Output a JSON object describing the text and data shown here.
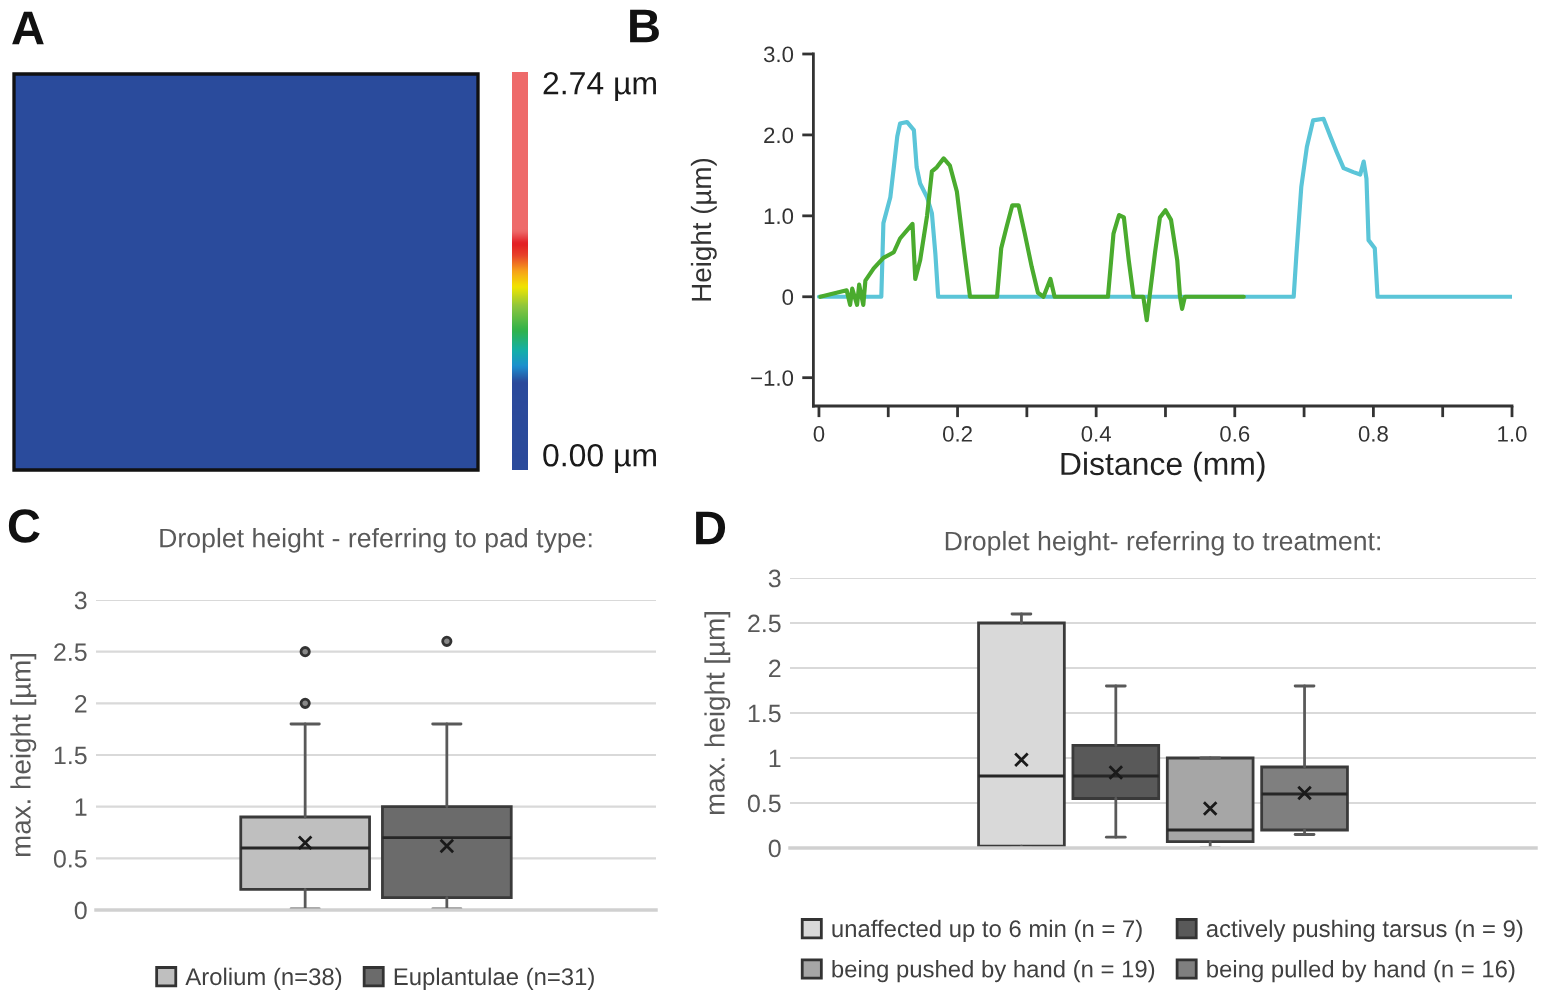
{
  "chart_data": [
    {
      "type": "other",
      "annotations": [
        "A",
        "2.74 µm",
        "0.00 µm"
      ]
    },
    {
      "type": "line",
      "xlabel": "Distance (mm)",
      "ylabel": "Height (µm)",
      "annotations": [
        "B"
      ],
      "series": [
        {
          "color": "#5bc5d8",
          "x": [
            0,
            0.09,
            0.093,
            0.103,
            0.108,
            0.113,
            0.117,
            0.127,
            0.137,
            0.141,
            0.146,
            0.156,
            0.163,
            0.168,
            0.172,
            0.685,
            0.689,
            0.696,
            0.704,
            0.713,
            0.728,
            0.738,
            0.747,
            0.757,
            0.771,
            0.781,
            0.786,
            0.79,
            0.793,
            0.802,
            0.806,
            1.0
          ],
          "values": [
            0,
            0,
            0.91,
            1.23,
            1.6,
            1.98,
            2.14,
            2.16,
            2.06,
            1.6,
            1.4,
            1.23,
            1.03,
            0.53,
            0,
            0,
            0.53,
            1.36,
            1.85,
            2.18,
            2.2,
            1.98,
            1.79,
            1.59,
            1.54,
            1.51,
            1.67,
            1.46,
            0.7,
            0.6,
            0,
            0
          ]
        },
        {
          "color": "#4aab2e",
          "x": [
            0.002,
            0.021,
            0.04,
            0.045,
            0.048,
            0.055,
            0.058,
            0.064,
            0.067,
            0.079,
            0.093,
            0.108,
            0.117,
            0.127,
            0.135,
            0.139,
            0.146,
            0.156,
            0.163,
            0.17,
            0.18,
            0.189,
            0.199,
            0.209,
            0.218,
            0.257,
            0.263,
            0.271,
            0.279,
            0.288,
            0.297,
            0.307,
            0.316,
            0.324,
            0.334,
            0.34,
            0.417,
            0.425,
            0.433,
            0.44,
            0.447,
            0.454,
            0.468,
            0.473,
            0.477,
            0.485,
            0.492,
            0.5,
            0.508,
            0.517,
            0.521,
            0.524,
            0.528,
            0.613
          ],
          "values": [
            0,
            0.04,
            0.08,
            -0.1,
            0.1,
            -0.1,
            0.15,
            -0.1,
            0.2,
            0.35,
            0.48,
            0.55,
            0.72,
            0.82,
            0.9,
            0.22,
            0.45,
            1.0,
            1.55,
            1.6,
            1.71,
            1.62,
            1.3,
            0.6,
            0,
            0,
            0.6,
            0.87,
            1.13,
            1.13,
            0.78,
            0.37,
            0.05,
            0,
            0.22,
            0,
            0,
            0.78,
            1.01,
            0.98,
            0.45,
            0,
            0,
            -0.29,
            0,
            0.55,
            0.98,
            1.07,
            0.95,
            0.45,
            0,
            -0.15,
            0,
            0
          ]
        }
      ],
      "xlim": [
        -0.008,
        1.0
      ],
      "ylim": [
        -1.35,
        3.0
      ],
      "xticks": [
        0,
        {
          "value": 0.1,
          "label": null
        },
        0.2,
        {
          "value": 0.3,
          "label": null
        },
        0.4,
        {
          "value": 0.5,
          "label": null
        },
        0.6,
        {
          "value": 0.7,
          "label": null
        },
        0.8,
        {
          "value": 0.9,
          "label": null
        },
        {
          "value": 1,
          "label": "1.0"
        }
      ],
      "yticks": [
        {
          "value": 3,
          "label": "3.0"
        },
        {
          "value": 2,
          "label": "2.0"
        },
        {
          "value": 1,
          "label": "1.0"
        },
        0,
        {
          "value": -1,
          "label": "−1.0"
        }
      ]
    },
    {
      "type": "box",
      "title": "Droplet height - referring to pad type:",
      "ylabel": "max. height [µm]",
      "annotations": [
        "C"
      ],
      "categories": [
        null
      ],
      "series": [
        {
          "name": "Arolium (n=38)",
          "color": "#bfbfbf",
          "boxes": [
            {
              "low": 0.01,
              "q1": 0.2,
              "median": 0.6,
              "q3": 0.9,
              "high": 1.8,
              "mean": 0.65,
              "outliers": [
                2.0,
                2.5
              ]
            }
          ]
        },
        {
          "name": "Euplantulae (n=31)",
          "color": "#6b6b6b",
          "boxes": [
            {
              "low": 0.01,
              "q1": 0.12,
              "median": 0.7,
              "q3": 1.0,
              "high": 1.8,
              "mean": 0.62,
              "outliers": [
                2.6
              ]
            }
          ]
        }
      ],
      "ylim": [
        0,
        3
      ],
      "yticks": [
        0,
        0.5,
        1,
        1.5,
        2,
        2.5,
        3
      ],
      "grid": "y",
      "legend": "bottom"
    },
    {
      "type": "box",
      "title": "Droplet height- referring to treatment:",
      "ylabel": "max. height [µm]",
      "annotations": [
        "D"
      ],
      "categories": [
        null
      ],
      "series": [
        {
          "name": "unaffected up to 6 min (n = 7)",
          "color": "#d9d9d9",
          "boxes": [
            {
              "low": 0,
              "q1": 0.02,
              "median": 0.8,
              "q3": 2.5,
              "high": 2.6,
              "mean": 0.98
            }
          ]
        },
        {
          "name": "actively pushing tarsus (n = 9)",
          "color": "#595959",
          "boxes": [
            {
              "low": 0.12,
              "q1": 0.55,
              "median": 0.8,
              "q3": 1.14,
              "high": 1.8,
              "mean": 0.84
            }
          ]
        },
        {
          "name": "being pushed by hand (n = 19)",
          "color": "#a6a6a6",
          "boxes": [
            {
              "low": 0,
              "q1": 0.07,
              "median": 0.2,
              "q3": 1.0,
              "high": 1.0,
              "mean": 0.44
            }
          ]
        },
        {
          "name": "being pulled by hand (n = 16)",
          "color": "#7f7f7f",
          "boxes": [
            {
              "low": 0.15,
              "q1": 0.2,
              "median": 0.6,
              "q3": 0.9,
              "high": 1.8,
              "mean": 0.61
            }
          ]
        }
      ],
      "ylim": [
        0,
        3
      ],
      "yticks": [
        0,
        0.5,
        1,
        1.5,
        2,
        2.5,
        3
      ],
      "grid": "y",
      "legend": "bottom"
    }
  ]
}
